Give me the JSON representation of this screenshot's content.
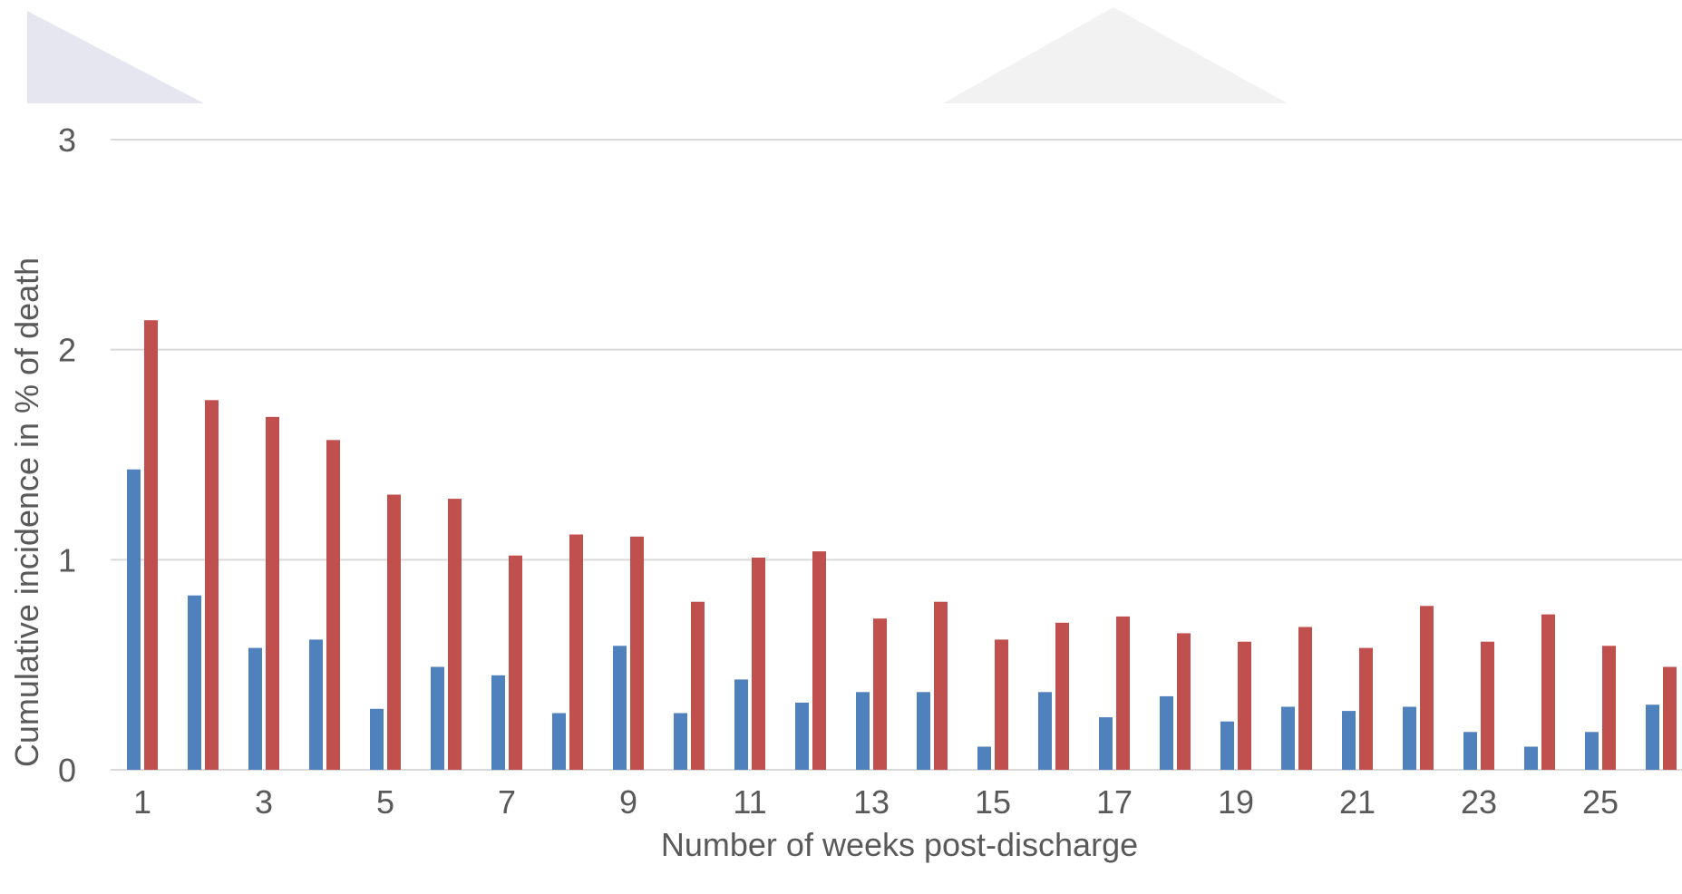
{
  "chart_data": {
    "type": "bar",
    "title": "",
    "xlabel": "Number of weeks post-discharge",
    "ylabel": "Cumulative incidence in % of death",
    "ylim": [
      0,
      3
    ],
    "y_ticks": [
      "0",
      "1",
      "2",
      "3"
    ],
    "grid": true,
    "categories": [
      "1",
      "2",
      "3",
      "4",
      "5",
      "6",
      "7",
      "8",
      "9",
      "10",
      "11",
      "12",
      "13",
      "14",
      "15",
      "16",
      "17",
      "18",
      "19",
      "20",
      "21",
      "22",
      "23",
      "24",
      "25",
      "26"
    ],
    "x_tick_labels": [
      "1",
      "3",
      "5",
      "7",
      "9",
      "11",
      "13",
      "15",
      "17",
      "19",
      "21",
      "23",
      "25"
    ],
    "series": [
      {
        "color": "#4f81bd",
        "values": [
          1.43,
          0.83,
          0.58,
          0.62,
          0.29,
          0.49,
          0.45,
          0.27,
          0.59,
          0.27,
          0.43,
          0.32,
          0.37,
          0.37,
          0.11,
          0.37,
          0.25,
          0.35,
          0.23,
          0.3,
          0.28,
          0.3,
          0.18,
          0.11,
          0.18,
          0.31
        ]
      },
      {
        "color": "#c0504d",
        "values": [
          2.14,
          1.76,
          1.68,
          1.57,
          1.31,
          1.29,
          1.02,
          1.12,
          1.11,
          0.8,
          1.01,
          1.04,
          0.72,
          0.8,
          0.62,
          0.7,
          0.73,
          0.65,
          0.61,
          0.68,
          0.58,
          0.78,
          0.61,
          0.74,
          0.59,
          0.49
        ]
      }
    ]
  }
}
